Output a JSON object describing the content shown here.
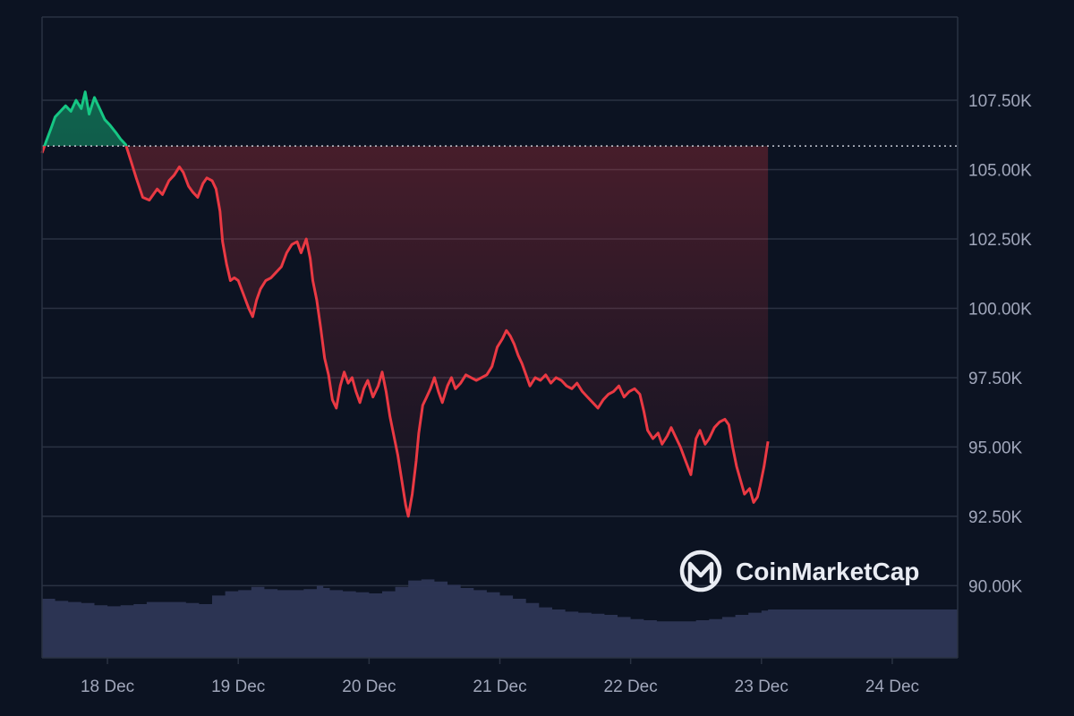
{
  "chart_data": {
    "type": "line",
    "title": "",
    "xlabel": "",
    "ylabel": "",
    "brand": "CoinMarketCap",
    "baseline": 105850,
    "ylim": [
      87400,
      110500
    ],
    "y_ticks": [
      {
        "value": 107500,
        "label": "107.50K"
      },
      {
        "value": 105000,
        "label": "105.00K"
      },
      {
        "value": 102500,
        "label": "102.50K"
      },
      {
        "value": 100000,
        "label": "100.00K"
      },
      {
        "value": 97500,
        "label": "97.50K"
      },
      {
        "value": 95000,
        "label": "95.00K"
      },
      {
        "value": 92500,
        "label": "92.50K"
      },
      {
        "value": 90000,
        "label": "90.00K"
      }
    ],
    "x_ticks": [
      {
        "t": 0.5,
        "label": "18 Dec"
      },
      {
        "t": 1.5,
        "label": "19 Dec"
      },
      {
        "t": 2.5,
        "label": "20 Dec"
      },
      {
        "t": 3.5,
        "label": "21 Dec"
      },
      {
        "t": 4.5,
        "label": "22 Dec"
      },
      {
        "t": 5.5,
        "label": "23 Dec"
      },
      {
        "t": 6.5,
        "label": "24 Dec"
      }
    ],
    "colors": {
      "up": "#16c784",
      "down": "#ea3943",
      "volume": "#2e3656",
      "grid": "#2a3242",
      "baseline": "#c8ccd6"
    },
    "price": [
      [
        0.0,
        105600
      ],
      [
        0.03,
        106000
      ],
      [
        0.07,
        106500
      ],
      [
        0.1,
        106900
      ],
      [
        0.14,
        107100
      ],
      [
        0.18,
        107300
      ],
      [
        0.22,
        107100
      ],
      [
        0.26,
        107500
      ],
      [
        0.3,
        107200
      ],
      [
        0.33,
        107800
      ],
      [
        0.36,
        107000
      ],
      [
        0.4,
        107600
      ],
      [
        0.44,
        107200
      ],
      [
        0.48,
        106800
      ],
      [
        0.52,
        106600
      ],
      [
        0.57,
        106300
      ],
      [
        0.6,
        106100
      ],
      [
        0.64,
        105900
      ],
      [
        0.68,
        105300
      ],
      [
        0.72,
        104700
      ],
      [
        0.77,
        104000
      ],
      [
        0.82,
        103900
      ],
      [
        0.88,
        104300
      ],
      [
        0.92,
        104100
      ],
      [
        0.97,
        104600
      ],
      [
        1.01,
        104800
      ],
      [
        1.05,
        105100
      ],
      [
        1.08,
        104900
      ],
      [
        1.12,
        104400
      ],
      [
        1.15,
        104200
      ],
      [
        1.19,
        104000
      ],
      [
        1.23,
        104500
      ],
      [
        1.26,
        104700
      ],
      [
        1.3,
        104600
      ],
      [
        1.33,
        104300
      ],
      [
        1.36,
        103500
      ],
      [
        1.38,
        102400
      ],
      [
        1.41,
        101600
      ],
      [
        1.44,
        101000
      ],
      [
        1.47,
        101100
      ],
      [
        1.5,
        101000
      ],
      [
        1.54,
        100500
      ],
      [
        1.58,
        100000
      ],
      [
        1.61,
        99700
      ],
      [
        1.64,
        100300
      ],
      [
        1.67,
        100700
      ],
      [
        1.71,
        101000
      ],
      [
        1.75,
        101100
      ],
      [
        1.79,
        101300
      ],
      [
        1.83,
        101500
      ],
      [
        1.87,
        102000
      ],
      [
        1.91,
        102300
      ],
      [
        1.95,
        102400
      ],
      [
        1.98,
        102000
      ],
      [
        2.02,
        102500
      ],
      [
        2.05,
        101800
      ],
      [
        2.07,
        101000
      ],
      [
        2.1,
        100300
      ],
      [
        2.13,
        99300
      ],
      [
        2.16,
        98200
      ],
      [
        2.19,
        97600
      ],
      [
        2.22,
        96700
      ],
      [
        2.25,
        96400
      ],
      [
        2.28,
        97200
      ],
      [
        2.31,
        97700
      ],
      [
        2.34,
        97300
      ],
      [
        2.37,
        97500
      ],
      [
        2.4,
        97000
      ],
      [
        2.43,
        96600
      ],
      [
        2.46,
        97100
      ],
      [
        2.49,
        97400
      ],
      [
        2.53,
        96800
      ],
      [
        2.57,
        97200
      ],
      [
        2.6,
        97700
      ],
      [
        2.63,
        97000
      ],
      [
        2.66,
        96100
      ],
      [
        2.69,
        95400
      ],
      [
        2.72,
        94700
      ],
      [
        2.75,
        93800
      ],
      [
        2.78,
        92900
      ],
      [
        2.8,
        92500
      ],
      [
        2.83,
        93300
      ],
      [
        2.86,
        94500
      ],
      [
        2.88,
        95500
      ],
      [
        2.91,
        96500
      ],
      [
        2.94,
        96800
      ],
      [
        2.97,
        97100
      ],
      [
        3.0,
        97500
      ],
      [
        3.03,
        97000
      ],
      [
        3.06,
        96600
      ],
      [
        3.1,
        97200
      ],
      [
        3.13,
        97500
      ],
      [
        3.16,
        97100
      ],
      [
        3.2,
        97300
      ],
      [
        3.24,
        97600
      ],
      [
        3.28,
        97500
      ],
      [
        3.32,
        97400
      ],
      [
        3.36,
        97500
      ],
      [
        3.4,
        97600
      ],
      [
        3.44,
        97900
      ],
      [
        3.48,
        98600
      ],
      [
        3.52,
        98900
      ],
      [
        3.55,
        99200
      ],
      [
        3.58,
        99000
      ],
      [
        3.61,
        98700
      ],
      [
        3.64,
        98300
      ],
      [
        3.67,
        98000
      ],
      [
        3.7,
        97600
      ],
      [
        3.73,
        97200
      ],
      [
        3.77,
        97500
      ],
      [
        3.81,
        97400
      ],
      [
        3.85,
        97600
      ],
      [
        3.89,
        97300
      ],
      [
        3.93,
        97500
      ],
      [
        3.97,
        97400
      ],
      [
        4.01,
        97200
      ],
      [
        4.05,
        97100
      ],
      [
        4.09,
        97300
      ],
      [
        4.13,
        97000
      ],
      [
        4.17,
        96800
      ],
      [
        4.21,
        96600
      ],
      [
        4.25,
        96400
      ],
      [
        4.29,
        96700
      ],
      [
        4.33,
        96900
      ],
      [
        4.37,
        97000
      ],
      [
        4.41,
        97200
      ],
      [
        4.45,
        96800
      ],
      [
        4.49,
        97000
      ],
      [
        4.53,
        97100
      ],
      [
        4.57,
        96900
      ],
      [
        4.6,
        96300
      ],
      [
        4.63,
        95600
      ],
      [
        4.67,
        95300
      ],
      [
        4.71,
        95500
      ],
      [
        4.74,
        95100
      ],
      [
        4.78,
        95400
      ],
      [
        4.81,
        95700
      ],
      [
        4.85,
        95300
      ],
      [
        4.88,
        95000
      ],
      [
        4.92,
        94500
      ],
      [
        4.96,
        94000
      ],
      [
        5.0,
        95300
      ],
      [
        5.03,
        95600
      ],
      [
        5.07,
        95100
      ],
      [
        5.1,
        95300
      ],
      [
        5.14,
        95700
      ],
      [
        5.18,
        95900
      ],
      [
        5.22,
        96000
      ],
      [
        5.25,
        95800
      ],
      [
        5.28,
        95000
      ],
      [
        5.31,
        94300
      ],
      [
        5.34,
        93800
      ],
      [
        5.37,
        93300
      ],
      [
        5.41,
        93500
      ],
      [
        5.44,
        93000
      ],
      [
        5.47,
        93200
      ],
      [
        5.49,
        93600
      ],
      [
        5.52,
        94300
      ],
      [
        5.55,
        95200
      ]
    ],
    "volume": [
      [
        0.0,
        0.55
      ],
      [
        0.1,
        0.53
      ],
      [
        0.2,
        0.52
      ],
      [
        0.3,
        0.51
      ],
      [
        0.4,
        0.49
      ],
      [
        0.5,
        0.48
      ],
      [
        0.6,
        0.49
      ],
      [
        0.7,
        0.5
      ],
      [
        0.8,
        0.52
      ],
      [
        0.9,
        0.52
      ],
      [
        1.0,
        0.52
      ],
      [
        1.1,
        0.51
      ],
      [
        1.2,
        0.5
      ],
      [
        1.3,
        0.58
      ],
      [
        1.4,
        0.62
      ],
      [
        1.5,
        0.63
      ],
      [
        1.6,
        0.66
      ],
      [
        1.7,
        0.64
      ],
      [
        1.8,
        0.63
      ],
      [
        1.9,
        0.63
      ],
      [
        2.0,
        0.64
      ],
      [
        2.05,
        0.64
      ],
      [
        2.1,
        0.67
      ],
      [
        2.15,
        0.65
      ],
      [
        2.2,
        0.63
      ],
      [
        2.3,
        0.62
      ],
      [
        2.4,
        0.61
      ],
      [
        2.5,
        0.6
      ],
      [
        2.6,
        0.62
      ],
      [
        2.7,
        0.66
      ],
      [
        2.8,
        0.72
      ],
      [
        2.9,
        0.73
      ],
      [
        3.0,
        0.71
      ],
      [
        3.1,
        0.68
      ],
      [
        3.2,
        0.65
      ],
      [
        3.3,
        0.63
      ],
      [
        3.4,
        0.61
      ],
      [
        3.5,
        0.58
      ],
      [
        3.6,
        0.55
      ],
      [
        3.7,
        0.51
      ],
      [
        3.8,
        0.47
      ],
      [
        3.9,
        0.45
      ],
      [
        4.0,
        0.43
      ],
      [
        4.1,
        0.42
      ],
      [
        4.2,
        0.41
      ],
      [
        4.3,
        0.4
      ],
      [
        4.4,
        0.38
      ],
      [
        4.5,
        0.36
      ],
      [
        4.6,
        0.35
      ],
      [
        4.7,
        0.34
      ],
      [
        4.8,
        0.34
      ],
      [
        4.9,
        0.34
      ],
      [
        5.0,
        0.35
      ],
      [
        5.1,
        0.36
      ],
      [
        5.2,
        0.38
      ],
      [
        5.3,
        0.4
      ],
      [
        5.4,
        0.42
      ],
      [
        5.5,
        0.44
      ],
      [
        5.55,
        0.45
      ]
    ]
  }
}
